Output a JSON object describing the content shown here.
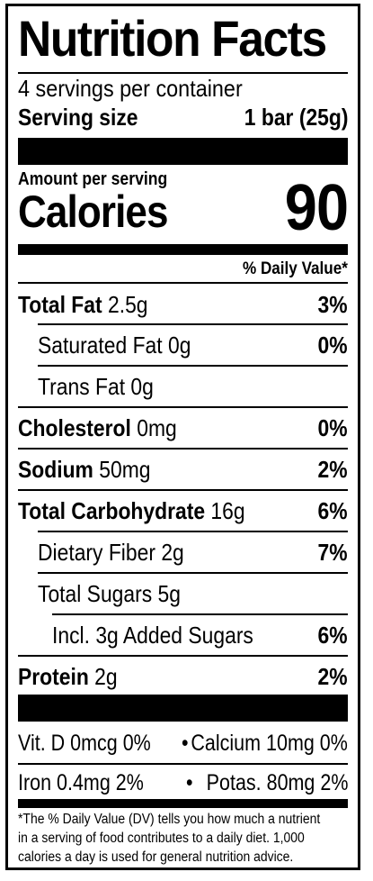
{
  "title": "Nutrition Facts",
  "servings_per_container": "4 servings per container",
  "serving_size": {
    "label": "Serving size",
    "value": "1 bar (25g)"
  },
  "amount_per_serving": "Amount per serving",
  "calories": {
    "label": "Calories",
    "value": "90"
  },
  "daily_value_header": "% Daily Value*",
  "nutrients": [
    {
      "bold": "Total Fat",
      "amount": " 2.5g",
      "dv": "3%"
    },
    {
      "bold": "",
      "amount": "Saturated Fat 0g",
      "dv": "0%"
    },
    {
      "bold": "",
      "amount": "Trans Fat 0g",
      "dv": ""
    },
    {
      "bold": "Cholesterol",
      "amount": " 0mg",
      "dv": "0%"
    },
    {
      "bold": "Sodium",
      "amount": " 50mg",
      "dv": "2%"
    },
    {
      "bold": "Total Carbohydrate",
      "amount": " 16g",
      "dv": "6%"
    },
    {
      "bold": "",
      "amount": "Dietary Fiber 2g",
      "dv": "7%"
    },
    {
      "bold": "",
      "amount": "Total Sugars 5g",
      "dv": ""
    },
    {
      "bold": "",
      "amount": "Incl. 3g Added Sugars",
      "dv": "6%"
    },
    {
      "bold": "Protein",
      "amount": " 2g",
      "dv": "2%"
    }
  ],
  "vitamins": {
    "row1_left": "Vit. D 0mcg 0%",
    "row1_sep": "•",
    "row1_right": "Calcium 10mg 0%",
    "row2_left": "Iron 0.4mg 2%",
    "row2_sep": "•",
    "row2_right": "Potas. 80mg 2%"
  },
  "footnote": {
    "line1": "*The % Daily Value (DV) tells you how much a nutrient",
    "line2": "in a serving of food contributes to a daily diet. 1,000",
    "line3": "calories a day is used for general nutrition advice."
  }
}
